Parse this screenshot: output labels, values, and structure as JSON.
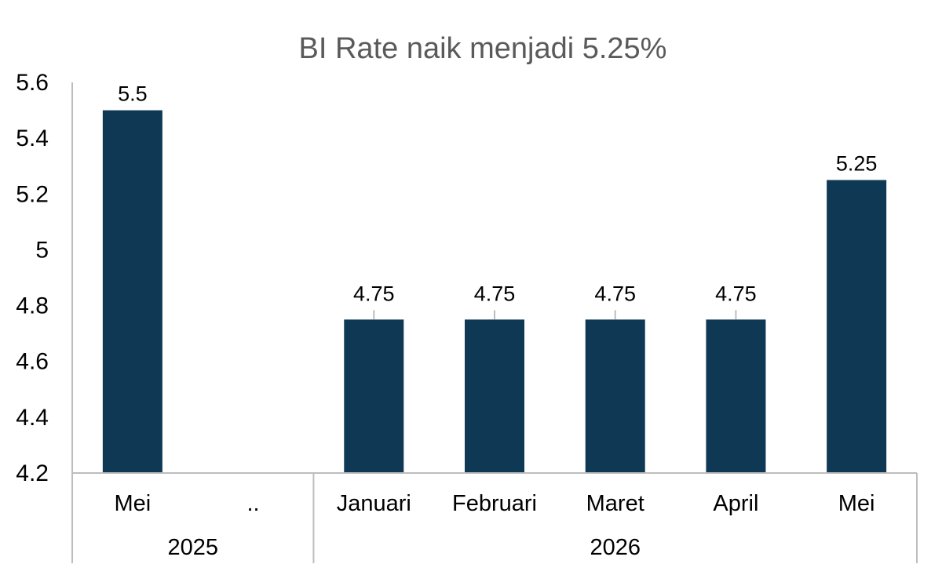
{
  "chart_data": {
    "type": "bar",
    "title": "BI Rate naik menjadi 5.25%",
    "categories": [
      "Mei",
      "..",
      "Januari",
      "Februari",
      "Maret",
      "April",
      "Mei"
    ],
    "groups": [
      {
        "label": "2025",
        "categories": [
          "Mei",
          ".."
        ]
      },
      {
        "label": "2026",
        "categories": [
          "Januari",
          "Februari",
          "Maret",
          "April",
          "Mei"
        ]
      }
    ],
    "values": [
      5.5,
      null,
      4.75,
      4.75,
      4.75,
      4.75,
      5.25
    ],
    "data_labels": [
      "5.5",
      "",
      "4.75",
      "4.75",
      "4.75",
      "4.75",
      "5.25"
    ],
    "yticks": [
      "4.2",
      "4.4",
      "4.6",
      "4.8",
      "5",
      "5.2",
      "5.4",
      "5.6"
    ],
    "ylim": [
      4.2,
      5.6
    ],
    "bar_color": "#0f3854",
    "grid": false,
    "legend": "none"
  }
}
